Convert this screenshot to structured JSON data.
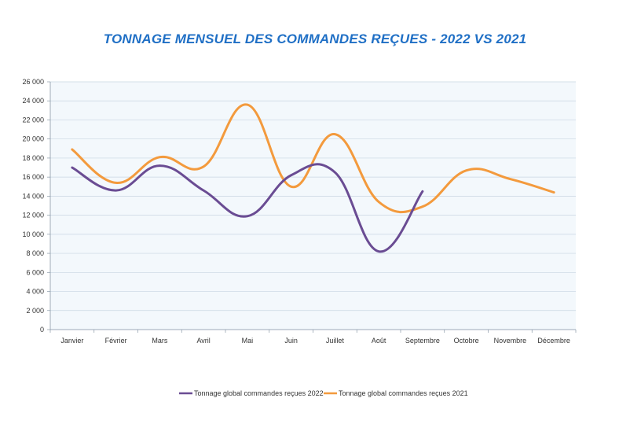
{
  "chart_data": {
    "type": "line",
    "title": "TONNAGE MENSUEL DES COMMANDES REÇUES - 2022 VS 2021",
    "xlabel": "",
    "ylabel": "",
    "categories": [
      "Janvier",
      "Février",
      "Mars",
      "Avril",
      "Mai",
      "Juin",
      "Juillet",
      "Août",
      "Septembre",
      "Octobre",
      "Novembre",
      "Décembre"
    ],
    "ylim": [
      0,
      26000
    ],
    "yticks": [
      0,
      2000,
      4000,
      6000,
      8000,
      10000,
      12000,
      14000,
      16000,
      18000,
      20000,
      22000,
      24000,
      26000
    ],
    "ytick_labels": [
      "0",
      "2 000",
      "4 000",
      "6 000",
      "8 000",
      "10 000",
      "12 000",
      "14 000",
      "16 000",
      "18 000",
      "20 000",
      "22 000",
      "24 000",
      "26 000"
    ],
    "grid": "horizontal",
    "legend_position": "bottom",
    "series": [
      {
        "name": "Tonnage global commandes reçues 2022",
        "color": "#6a4c93",
        "values": [
          17000,
          14600,
          17200,
          14600,
          11900,
          16200,
          16500,
          8200,
          14500,
          null,
          null,
          null
        ]
      },
      {
        "name": "Tonnage global commandes reçues 2021",
        "color": "#f39a3d",
        "values": [
          18900,
          15400,
          18100,
          17100,
          23600,
          15000,
          20500,
          13400,
          12900,
          16700,
          15800,
          14400
        ]
      }
    ],
    "plot_background": "#f3f8fc",
    "grid_color": "#c9d6e2"
  }
}
